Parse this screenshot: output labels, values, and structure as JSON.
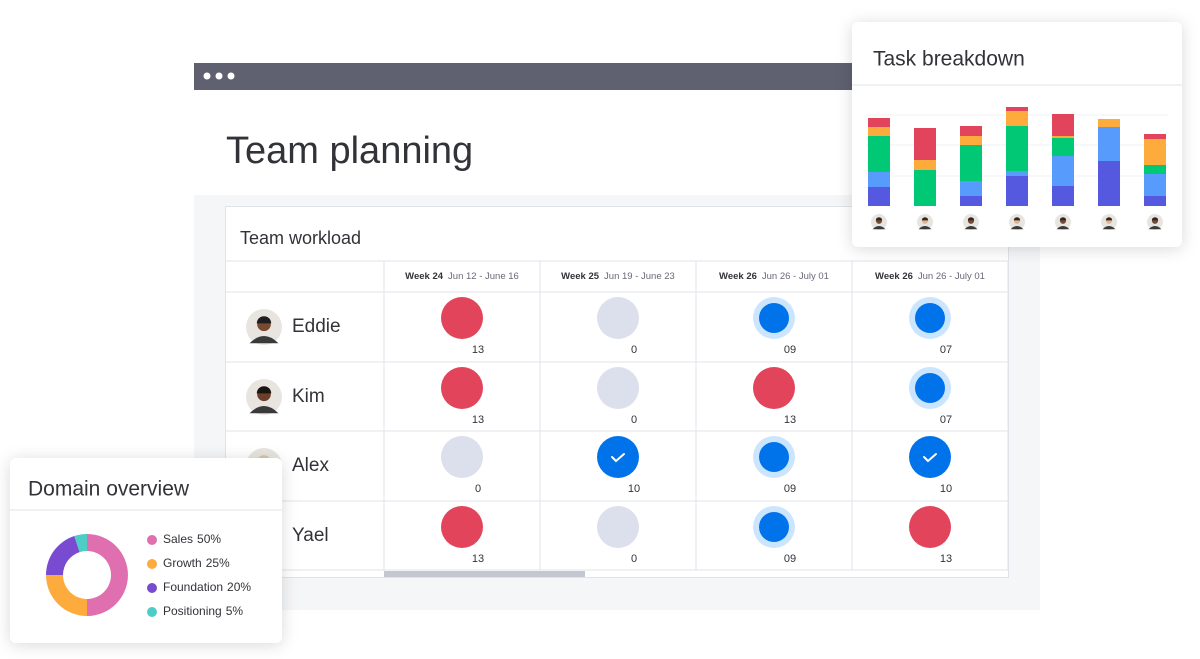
{
  "window": {
    "title": "Team planning"
  },
  "workload": {
    "title": "Team workload",
    "columns": [
      {
        "week": "Week 24",
        "range": "Jun 12 - June 16"
      },
      {
        "week": "Week 25",
        "range": "Jun 19 - June 23"
      },
      {
        "week": "Week 26",
        "range": "Jun 26 - July 01"
      },
      {
        "week": "Week 26",
        "range": "Jun 26 - July 01"
      }
    ],
    "rows": [
      {
        "name": "Eddie",
        "cells": [
          {
            "value": "13",
            "color": "#e2445c"
          },
          {
            "value": "0",
            "color": "#dcdfec"
          },
          {
            "value": "09",
            "color": "#0073ea",
            "ring": "#cce5ff"
          },
          {
            "value": "07",
            "color": "#0073ea",
            "ring": "#cce5ff"
          }
        ]
      },
      {
        "name": "Kim",
        "cells": [
          {
            "value": "13",
            "color": "#e2445c"
          },
          {
            "value": "0",
            "color": "#dcdfec"
          },
          {
            "value": "13",
            "color": "#e2445c"
          },
          {
            "value": "07",
            "color": "#0073ea",
            "ring": "#cce5ff"
          }
        ]
      },
      {
        "name": "Alex",
        "cells": [
          {
            "value": "0",
            "color": "#dcdfec"
          },
          {
            "value": "10",
            "color": "#0073ea",
            "check": true
          },
          {
            "value": "09",
            "color": "#0073ea",
            "ring": "#cce5ff"
          },
          {
            "value": "10",
            "color": "#0073ea",
            "check": true
          }
        ]
      },
      {
        "name": "Yael",
        "cells": [
          {
            "value": "13",
            "color": "#e2445c"
          },
          {
            "value": "0",
            "color": "#dcdfec"
          },
          {
            "value": "09",
            "color": "#0073ea",
            "ring": "#cce5ff"
          },
          {
            "value": "13",
            "color": "#e2445c"
          }
        ]
      }
    ]
  },
  "chart_data": [
    {
      "type": "bar",
      "stacked": true,
      "title": "Task breakdown",
      "categories": [
        null,
        null,
        null,
        null,
        null,
        null,
        null
      ],
      "series": [
        {
          "color": "#5559df",
          "values": [
            19,
            0,
            10,
            30,
            20,
            45,
            10
          ]
        },
        {
          "color": "#579bfc",
          "values": [
            15,
            0,
            15,
            5,
            30,
            34,
            22
          ]
        },
        {
          "color": "#00c875",
          "values": [
            36,
            36,
            36,
            45,
            18,
            0,
            9
          ]
        },
        {
          "color": "#fdab3d",
          "values": [
            9,
            10,
            9,
            15,
            2,
            8,
            26
          ]
        },
        {
          "color": "#e2445c",
          "values": [
            9,
            32,
            10,
            4,
            22,
            0,
            5
          ]
        }
      ]
    },
    {
      "type": "donut",
      "title": "Domain overview",
      "categories": [
        "Sales",
        "Growth",
        "Foundation",
        "Positioning"
      ],
      "values": [
        50,
        25,
        20,
        5
      ],
      "value_labels": [
        "50%",
        "25%",
        "20%",
        "5%"
      ],
      "colors": [
        "#e06fb0",
        "#fdab3d",
        "#784bd1",
        "#4eccc6"
      ]
    }
  ]
}
